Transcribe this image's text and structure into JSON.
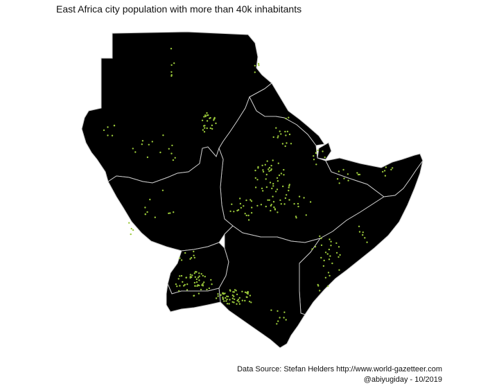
{
  "title": "East Africa city population with more than 40k inhabitants",
  "caption": {
    "source": "Data Source: Stefan Helders http://www.world-gazetteer.com",
    "credit": "@abiyugiday - 10/2019"
  },
  "colors": {
    "land": "#000000",
    "border": "#c8c8c8",
    "city": "#9ac83a",
    "background": "#ffffff"
  }
}
